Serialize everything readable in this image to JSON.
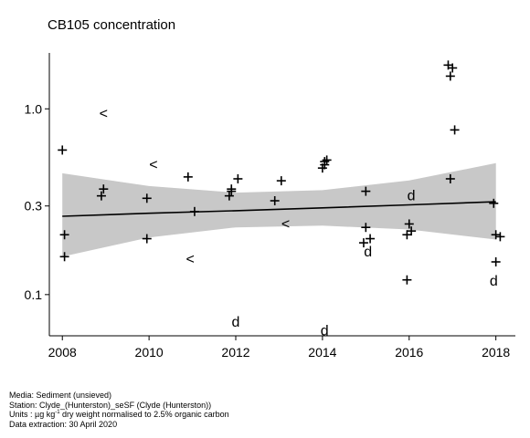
{
  "chart_data": {
    "type": "scatter",
    "title": "CB105 concentration",
    "xlabel": "",
    "ylabel": "",
    "x_scale": "linear",
    "y_scale": "log",
    "xlim": [
      2007.7,
      2018.45
    ],
    "ylim": [
      0.06,
      2.0
    ],
    "xticks": [
      2008,
      2010,
      2012,
      2014,
      2016,
      2018
    ],
    "yticks": [
      {
        "value": 0.1,
        "label": "0.1"
      },
      {
        "value": 0.3,
        "label": "0.3"
      },
      {
        "value": 1.0,
        "label": "1.0"
      }
    ],
    "grid": false,
    "legend": "none",
    "colors": {
      "marker": "#000000",
      "trend": "#000000",
      "band": "#c8c8c8"
    },
    "series": [
      {
        "marker": "+",
        "meaning": "measured value",
        "points": [
          {
            "x": 2008.0,
            "y": 0.6
          },
          {
            "x": 2008.05,
            "y": 0.21
          },
          {
            "x": 2008.05,
            "y": 0.16
          },
          {
            "x": 2008.9,
            "y": 0.34
          },
          {
            "x": 2008.95,
            "y": 0.37
          },
          {
            "x": 2009.95,
            "y": 0.33
          },
          {
            "x": 2009.95,
            "y": 0.2
          },
          {
            "x": 2010.9,
            "y": 0.43
          },
          {
            "x": 2011.05,
            "y": 0.28
          },
          {
            "x": 2011.85,
            "y": 0.34
          },
          {
            "x": 2011.9,
            "y": 0.37
          },
          {
            "x": 2011.9,
            "y": 0.36
          },
          {
            "x": 2012.05,
            "y": 0.42
          },
          {
            "x": 2012.9,
            "y": 0.32
          },
          {
            "x": 2013.05,
            "y": 0.41
          },
          {
            "x": 2014.0,
            "y": 0.48
          },
          {
            "x": 2014.05,
            "y": 0.5
          },
          {
            "x": 2014.05,
            "y": 0.52
          },
          {
            "x": 2014.1,
            "y": 0.53
          },
          {
            "x": 2014.95,
            "y": 0.19
          },
          {
            "x": 2015.0,
            "y": 0.23
          },
          {
            "x": 2015.0,
            "y": 0.36
          },
          {
            "x": 2015.1,
            "y": 0.2
          },
          {
            "x": 2015.95,
            "y": 0.21
          },
          {
            "x": 2015.95,
            "y": 0.12
          },
          {
            "x": 2016.0,
            "y": 0.24
          },
          {
            "x": 2016.05,
            "y": 0.22
          },
          {
            "x": 2016.9,
            "y": 1.72
          },
          {
            "x": 2016.95,
            "y": 1.5
          },
          {
            "x": 2016.95,
            "y": 0.42
          },
          {
            "x": 2017.0,
            "y": 1.66
          },
          {
            "x": 2017.05,
            "y": 0.77
          },
          {
            "x": 2017.95,
            "y": 0.31
          },
          {
            "x": 2018.0,
            "y": 0.21
          },
          {
            "x": 2018.0,
            "y": 0.15
          },
          {
            "x": 2018.1,
            "y": 0.205
          }
        ]
      },
      {
        "marker": "<",
        "meaning": "less-than detection limit",
        "points": [
          {
            "x": 2008.95,
            "y": 0.94
          },
          {
            "x": 2010.1,
            "y": 0.5
          },
          {
            "x": 2010.95,
            "y": 0.155
          },
          {
            "x": 2013.15,
            "y": 0.24
          }
        ]
      },
      {
        "marker": "d",
        "meaning": "less-than detection limit",
        "points": [
          {
            "x": 2012.0,
            "y": 0.071
          },
          {
            "x": 2014.05,
            "y": 0.064
          },
          {
            "x": 2015.05,
            "y": 0.17
          },
          {
            "x": 2016.05,
            "y": 0.34
          },
          {
            "x": 2017.95,
            "y": 0.118
          }
        ]
      }
    ],
    "trend": {
      "x": [
        2008.0,
        2010.0,
        2012.0,
        2014.0,
        2016.0,
        2018.0
      ],
      "y": [
        0.264,
        0.274,
        0.283,
        0.293,
        0.304,
        0.316
      ],
      "lower": [
        0.16,
        0.203,
        0.23,
        0.235,
        0.224,
        0.198
      ],
      "upper": [
        0.45,
        0.384,
        0.354,
        0.365,
        0.412,
        0.51
      ]
    }
  },
  "footer": {
    "media": "Media: Sediment (unsieved)",
    "station": "Station: Clyde_(Hunterston)_seSF (Clyde (Hunterston))",
    "units_prefix": "Units : µg kg",
    "units_sup": "-1",
    "units_suffix": " dry weight normalised to 2.5% organic carbon",
    "extraction": "Data extraction: 30 April 2020"
  }
}
